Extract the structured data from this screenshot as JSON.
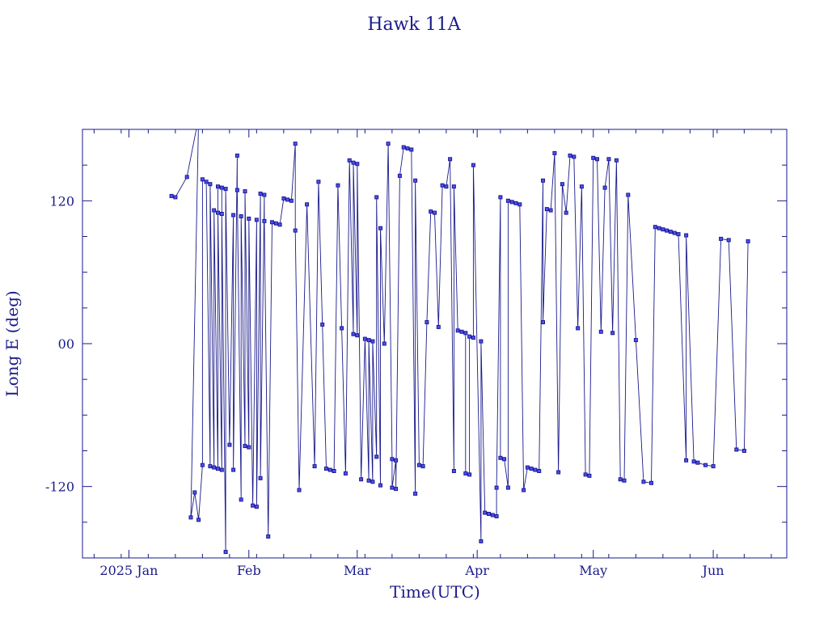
{
  "chart_data": {
    "type": "line",
    "title": "Hawk 11A",
    "xlabel": "Time(UTC)",
    "ylabel": "Long E (deg)",
    "xlim": [
      "2024-12-20",
      "2025-06-20"
    ],
    "ylim": [
      -180,
      180
    ],
    "y_wrap": true,
    "grid": false,
    "x_ticks": [
      {
        "date": "2025-01-01",
        "label": "2025 Jan"
      },
      {
        "date": "2025-02-01",
        "label": "Feb"
      },
      {
        "date": "2025-03-01",
        "label": "Mar"
      },
      {
        "date": "2025-04-01",
        "label": "Apr"
      },
      {
        "date": "2025-05-01",
        "label": "May"
      },
      {
        "date": "2025-06-01",
        "label": "Jun"
      }
    ],
    "y_ticks": [
      {
        "value": 120,
        "label": "120"
      },
      {
        "value": 0,
        "label": "00"
      },
      {
        "value": -120,
        "label": "-120"
      }
    ],
    "series": [
      {
        "points": [
          [
            "2025-01-12",
            124
          ],
          [
            "2025-01-13",
            123
          ],
          [
            "2025-01-16",
            140
          ],
          [
            "2025-01-19",
            190
          ],
          [
            "2025-01-17",
            -146
          ],
          [
            "2025-01-18",
            -125
          ],
          [
            "2025-01-19",
            -148
          ],
          [
            "2025-01-20",
            -102
          ],
          [
            "2025-01-20",
            138
          ],
          [
            "2025-01-21",
            136
          ],
          [
            "2025-01-22",
            -103
          ],
          [
            "2025-01-22",
            134
          ],
          [
            "2025-01-23",
            -104
          ],
          [
            "2025-01-23",
            112
          ],
          [
            "2025-01-24",
            -105
          ],
          [
            "2025-01-24",
            132
          ],
          [
            "2025-01-24",
            110
          ],
          [
            "2025-01-25",
            -106
          ],
          [
            "2025-01-25",
            131
          ],
          [
            "2025-01-25",
            109
          ],
          [
            "2025-01-26",
            -175
          ],
          [
            "2025-01-26",
            130
          ],
          [
            "2025-01-27",
            -85
          ],
          [
            "2025-01-28",
            108
          ],
          [
            "2025-01-28",
            -106
          ],
          [
            "2025-01-29",
            158
          ],
          [
            "2025-01-29",
            129
          ],
          [
            "2025-01-30",
            -131
          ],
          [
            "2025-01-30",
            107
          ],
          [
            "2025-01-31",
            -86
          ],
          [
            "2025-01-31",
            128
          ],
          [
            "2025-02-01",
            -87
          ],
          [
            "2025-02-01",
            105
          ],
          [
            "2025-02-02",
            -136
          ],
          [
            "2025-02-03",
            104
          ],
          [
            "2025-02-03",
            -137
          ],
          [
            "2025-02-04",
            126
          ],
          [
            "2025-02-04",
            -113
          ],
          [
            "2025-02-05",
            125
          ],
          [
            "2025-02-05",
            103
          ],
          [
            "2025-02-06",
            -162
          ],
          [
            "2025-02-07",
            102
          ],
          [
            "2025-02-08",
            101
          ],
          [
            "2025-02-09",
            100
          ],
          [
            "2025-02-10",
            122
          ],
          [
            "2025-02-11",
            121
          ],
          [
            "2025-02-12",
            120
          ],
          [
            "2025-02-13",
            168
          ],
          [
            "2025-02-13",
            95
          ],
          [
            "2025-02-14",
            -123
          ],
          [
            "2025-02-16",
            117
          ],
          [
            "2025-02-18",
            -103
          ],
          [
            "2025-02-19",
            136
          ],
          [
            "2025-02-20",
            16
          ],
          [
            "2025-02-21",
            -105
          ],
          [
            "2025-02-22",
            -106
          ],
          [
            "2025-02-23",
            -107
          ],
          [
            "2025-02-24",
            133
          ],
          [
            "2025-02-25",
            13
          ],
          [
            "2025-02-26",
            -109
          ],
          [
            "2025-02-27",
            154
          ],
          [
            "2025-02-28",
            8
          ],
          [
            "2025-02-28",
            152
          ],
          [
            "2025-03-01",
            7
          ],
          [
            "2025-03-01",
            151
          ],
          [
            "2025-03-02",
            -114
          ],
          [
            "2025-03-03",
            4
          ],
          [
            "2025-03-04",
            -115
          ],
          [
            "2025-03-04",
            3
          ],
          [
            "2025-03-05",
            -116
          ],
          [
            "2025-03-05",
            2
          ],
          [
            "2025-03-06",
            -95
          ],
          [
            "2025-03-06",
            123
          ],
          [
            "2025-03-07",
            -119
          ],
          [
            "2025-03-07",
            97
          ],
          [
            "2025-03-08",
            0
          ],
          [
            "2025-03-09",
            168
          ],
          [
            "2025-03-10",
            -97
          ],
          [
            "2025-03-10",
            -121
          ],
          [
            "2025-03-11",
            -98
          ],
          [
            "2025-03-11",
            -122
          ],
          [
            "2025-03-12",
            141
          ],
          [
            "2025-03-13",
            165
          ],
          [
            "2025-03-14",
            164
          ],
          [
            "2025-03-15",
            163
          ],
          [
            "2025-03-16",
            -126
          ],
          [
            "2025-03-16",
            137
          ],
          [
            "2025-03-17",
            -102
          ],
          [
            "2025-03-18",
            -103
          ],
          [
            "2025-03-19",
            18
          ],
          [
            "2025-03-20",
            111
          ],
          [
            "2025-03-21",
            110
          ],
          [
            "2025-03-22",
            14
          ],
          [
            "2025-03-23",
            133
          ],
          [
            "2025-03-24",
            132
          ],
          [
            "2025-03-25",
            155
          ],
          [
            "2025-03-26",
            -107
          ],
          [
            "2025-03-26",
            132
          ],
          [
            "2025-03-27",
            11
          ],
          [
            "2025-03-28",
            10
          ],
          [
            "2025-03-29",
            9
          ],
          [
            "2025-03-29",
            -109
          ],
          [
            "2025-03-30",
            -110
          ],
          [
            "2025-03-30",
            6
          ],
          [
            "2025-03-31",
            5
          ],
          [
            "2025-03-31",
            150
          ],
          [
            "2025-04-02",
            -166
          ],
          [
            "2025-04-02",
            2
          ],
          [
            "2025-04-03",
            -142
          ],
          [
            "2025-04-04",
            -143
          ],
          [
            "2025-04-05",
            -144
          ],
          [
            "2025-04-06",
            -145
          ],
          [
            "2025-04-06",
            -121
          ],
          [
            "2025-04-07",
            123
          ],
          [
            "2025-04-07",
            -96
          ],
          [
            "2025-04-08",
            -97
          ],
          [
            "2025-04-09",
            -121
          ],
          [
            "2025-04-09",
            120
          ],
          [
            "2025-04-10",
            119
          ],
          [
            "2025-04-11",
            118
          ],
          [
            "2025-04-12",
            117
          ],
          [
            "2025-04-13",
            -123
          ],
          [
            "2025-04-14",
            -104
          ],
          [
            "2025-04-15",
            -105
          ],
          [
            "2025-04-16",
            -106
          ],
          [
            "2025-04-17",
            -107
          ],
          [
            "2025-04-18",
            137
          ],
          [
            "2025-04-18",
            18
          ],
          [
            "2025-04-19",
            113
          ],
          [
            "2025-04-20",
            112
          ],
          [
            "2025-04-21",
            160
          ],
          [
            "2025-04-22",
            -108
          ],
          [
            "2025-04-23",
            134
          ],
          [
            "2025-04-24",
            110
          ],
          [
            "2025-04-25",
            158
          ],
          [
            "2025-04-26",
            157
          ],
          [
            "2025-04-27",
            13
          ],
          [
            "2025-04-28",
            132
          ],
          [
            "2025-04-29",
            -110
          ],
          [
            "2025-04-30",
            -111
          ],
          [
            "2025-05-01",
            156
          ],
          [
            "2025-05-02",
            155
          ],
          [
            "2025-05-03",
            10
          ],
          [
            "2025-05-04",
            131
          ],
          [
            "2025-05-05",
            155
          ],
          [
            "2025-05-06",
            9
          ],
          [
            "2025-05-07",
            154
          ],
          [
            "2025-05-08",
            -114
          ],
          [
            "2025-05-09",
            -115
          ],
          [
            "2025-05-10",
            125
          ],
          [
            "2025-05-12",
            3
          ],
          [
            "2025-05-14",
            -116
          ],
          [
            "2025-05-16",
            -117
          ],
          [
            "2025-05-17",
            98
          ],
          [
            "2025-05-18",
            97
          ],
          [
            "2025-05-19",
            96
          ],
          [
            "2025-05-20",
            95
          ],
          [
            "2025-05-21",
            94
          ],
          [
            "2025-05-22",
            93
          ],
          [
            "2025-05-23",
            92
          ],
          [
            "2025-05-25",
            -98
          ],
          [
            "2025-05-25",
            91
          ],
          [
            "2025-05-27",
            -99
          ],
          [
            "2025-05-28",
            -100
          ],
          [
            "2025-05-30",
            -102
          ],
          [
            "2025-06-01",
            -103
          ],
          [
            "2025-06-03",
            88
          ],
          [
            "2025-06-05",
            87
          ],
          [
            "2025-06-07",
            -89
          ],
          [
            "2025-06-09",
            -90
          ],
          [
            "2025-06-10",
            86
          ]
        ]
      }
    ]
  }
}
